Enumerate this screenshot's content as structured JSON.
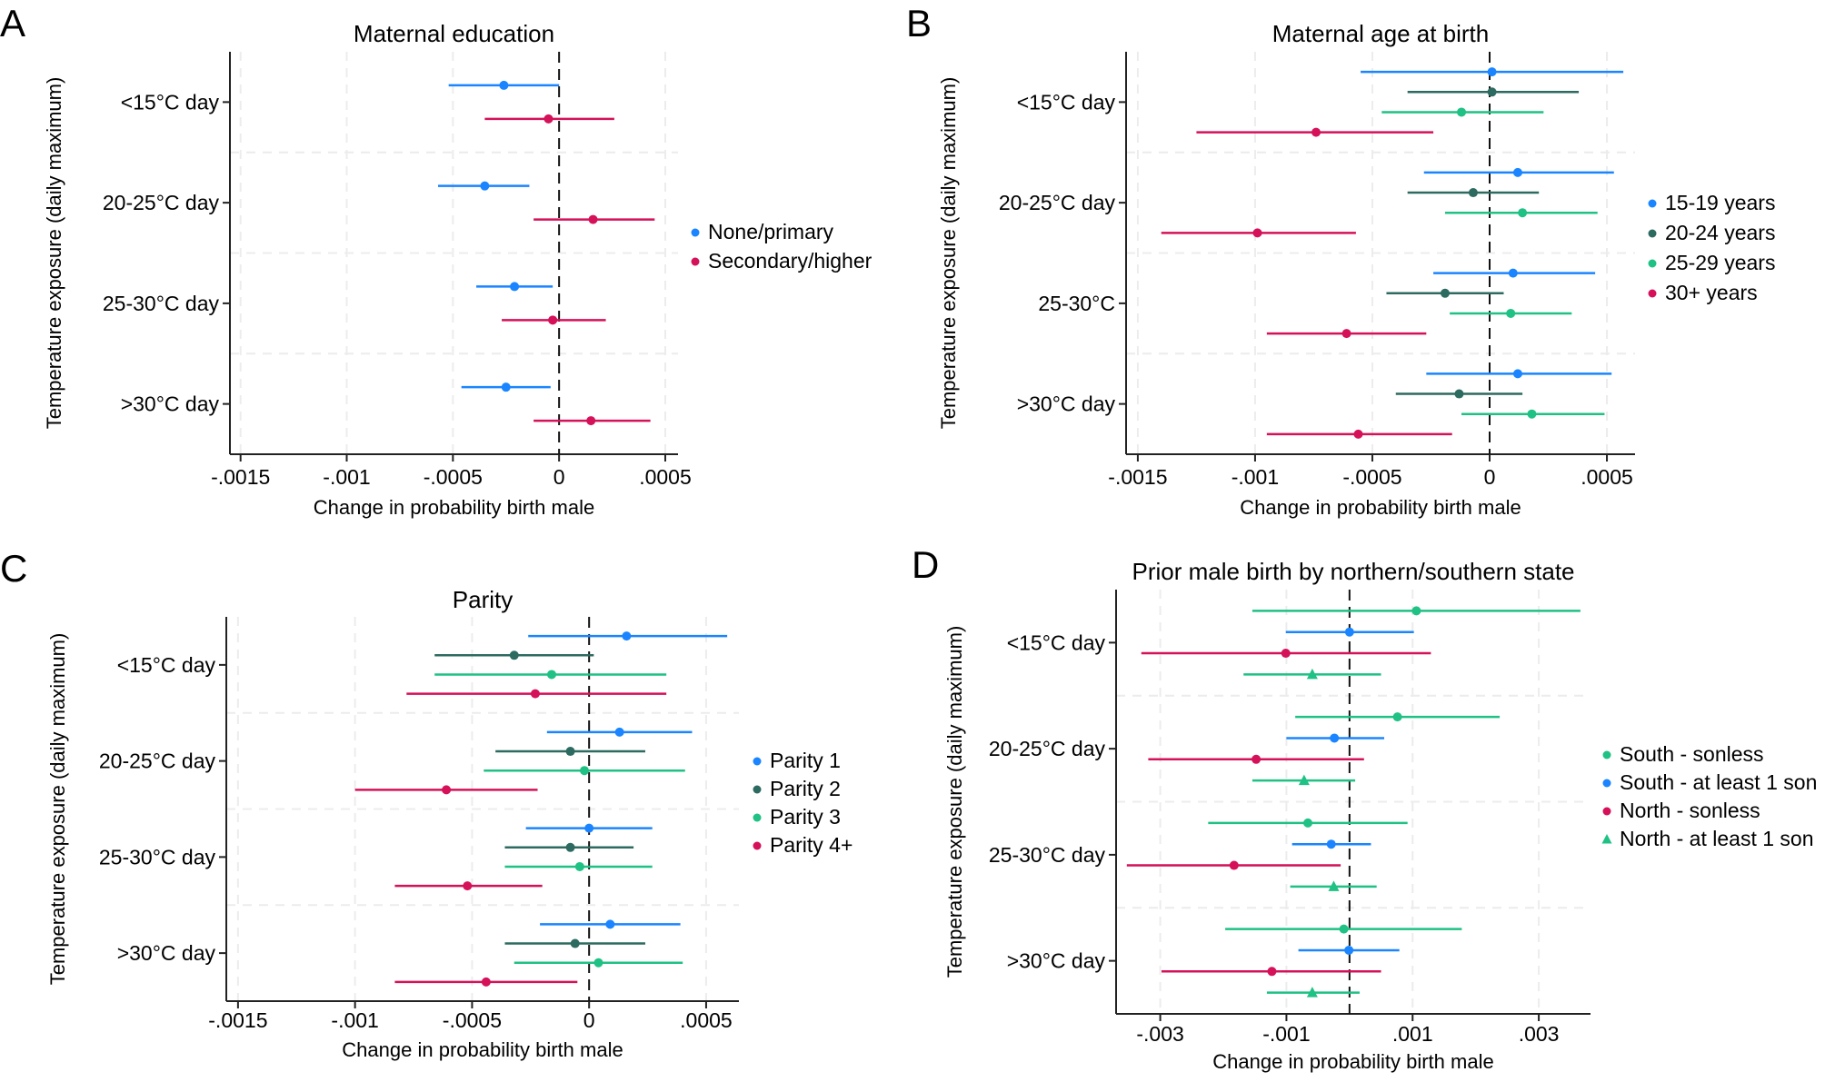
{
  "chart_data": [
    {
      "panel_label": "A",
      "type": "forest",
      "title": "Maternal education",
      "xlabel": "Change in probability birth male",
      "ylabel": "Temperature exposure (daily maximum)",
      "categories": [
        "<15°C day",
        "20-25°C day",
        "25-30°C day",
        ">30°C day"
      ],
      "x_ticks": [
        -0.0015,
        -0.001,
        -0.0005,
        0,
        0.0005
      ],
      "x_tick_labels": [
        "-.0015",
        "-.001",
        "-.0005",
        "0",
        ".0005"
      ],
      "xlim": [
        -0.00155,
        0.00056
      ],
      "reference_line": 0,
      "legend_position": "right",
      "series": [
        {
          "name": "None/primary",
          "color": "#1a85ff",
          "marker": "circle",
          "points": [
            {
              "est": -0.00026,
              "lo": -0.00052,
              "hi": 0.0
            },
            {
              "est": -0.00035,
              "lo": -0.00057,
              "hi": -0.00014
            },
            {
              "est": -0.00021,
              "lo": -0.00039,
              "hi": -3e-05
            },
            {
              "est": -0.00025,
              "lo": -0.00046,
              "hi": -4e-05
            }
          ]
        },
        {
          "name": "Secondary/higher",
          "color": "#d41159",
          "marker": "circle",
          "points": [
            {
              "est": -5e-05,
              "lo": -0.00035,
              "hi": 0.00026
            },
            {
              "est": 0.00016,
              "lo": -0.00012,
              "hi": 0.00045
            },
            {
              "est": -3e-05,
              "lo": -0.00027,
              "hi": 0.00022
            },
            {
              "est": 0.00015,
              "lo": -0.00012,
              "hi": 0.00043
            }
          ]
        }
      ]
    },
    {
      "panel_label": "B",
      "type": "forest",
      "title": "Maternal age at birth",
      "xlabel": "Change in probability birth male",
      "ylabel": "Temperature exposure (daily maximum)",
      "categories": [
        "<15°C day",
        "20-25°C day",
        "25-30°C",
        ">30°C day"
      ],
      "x_ticks": [
        -0.0015,
        -0.001,
        -0.0005,
        0,
        0.0005
      ],
      "x_tick_labels": [
        "-.0015",
        "-.001",
        "-.0005",
        "0",
        ".0005"
      ],
      "xlim": [
        -0.00155,
        0.00062
      ],
      "reference_line": 0,
      "legend_position": "right",
      "series": [
        {
          "name": "15-19 years",
          "color": "#1a85ff",
          "marker": "circle",
          "points": [
            {
              "est": 1e-05,
              "lo": -0.00055,
              "hi": 0.00057
            },
            {
              "est": 0.00012,
              "lo": -0.00028,
              "hi": 0.00053
            },
            {
              "est": 0.0001,
              "lo": -0.00024,
              "hi": 0.00045
            },
            {
              "est": 0.00012,
              "lo": -0.00027,
              "hi": 0.00052
            }
          ]
        },
        {
          "name": "20-24 years",
          "color": "#2d6a5f",
          "marker": "circle",
          "points": [
            {
              "est": 1e-05,
              "lo": -0.00035,
              "hi": 0.00038
            },
            {
              "est": -7e-05,
              "lo": -0.00035,
              "hi": 0.00021
            },
            {
              "est": -0.00019,
              "lo": -0.00044,
              "hi": 6e-05
            },
            {
              "est": -0.00013,
              "lo": -0.0004,
              "hi": 0.00014
            }
          ]
        },
        {
          "name": "25-29 years",
          "color": "#1fc184",
          "marker": "circle",
          "points": [
            {
              "est": -0.00012,
              "lo": -0.00046,
              "hi": 0.00023
            },
            {
              "est": 0.00014,
              "lo": -0.00019,
              "hi": 0.00046
            },
            {
              "est": 9e-05,
              "lo": -0.00017,
              "hi": 0.00035
            },
            {
              "est": 0.00018,
              "lo": -0.00012,
              "hi": 0.00049
            }
          ]
        },
        {
          "name": "30+ years",
          "color": "#d41159",
          "marker": "circle",
          "points": [
            {
              "est": -0.00074,
              "lo": -0.00125,
              "hi": -0.00024
            },
            {
              "est": -0.00099,
              "lo": -0.0014,
              "hi": -0.00057
            },
            {
              "est": -0.00061,
              "lo": -0.00095,
              "hi": -0.00027
            },
            {
              "est": -0.00056,
              "lo": -0.00095,
              "hi": -0.00016
            }
          ]
        }
      ]
    },
    {
      "panel_label": "C",
      "type": "forest",
      "title": "Parity",
      "xlabel": "Change in probability birth male",
      "ylabel": "Temperature exposure (daily maximum)",
      "categories": [
        "<15°C day",
        "20-25°C day",
        "25-30°C day",
        ">30°C day"
      ],
      "x_ticks": [
        -0.0015,
        -0.001,
        -0.0005,
        0,
        0.0005
      ],
      "x_tick_labels": [
        "-.0015",
        "-.001",
        "-.0005",
        "0",
        ".0005"
      ],
      "xlim": [
        -0.00155,
        0.00064
      ],
      "reference_line": 0,
      "legend_position": "right",
      "series": [
        {
          "name": "Parity 1",
          "color": "#1a85ff",
          "marker": "circle",
          "points": [
            {
              "est": 0.00016,
              "lo": -0.00026,
              "hi": 0.00059
            },
            {
              "est": 0.00013,
              "lo": -0.00018,
              "hi": 0.00044
            },
            {
              "est": 0.0,
              "lo": -0.00027,
              "hi": 0.00027
            },
            {
              "est": 9e-05,
              "lo": -0.00021,
              "hi": 0.00039
            }
          ]
        },
        {
          "name": "Parity 2",
          "color": "#2d6a5f",
          "marker": "circle",
          "points": [
            {
              "est": -0.00032,
              "lo": -0.00066,
              "hi": 2e-05
            },
            {
              "est": -8e-05,
              "lo": -0.0004,
              "hi": 0.00024
            },
            {
              "est": -8e-05,
              "lo": -0.00036,
              "hi": 0.00019
            },
            {
              "est": -6e-05,
              "lo": -0.00036,
              "hi": 0.00024
            }
          ]
        },
        {
          "name": "Parity 3",
          "color": "#1fc184",
          "marker": "circle",
          "points": [
            {
              "est": -0.00016,
              "lo": -0.00066,
              "hi": 0.00033
            },
            {
              "est": -2e-05,
              "lo": -0.00045,
              "hi": 0.00041
            },
            {
              "est": -4e-05,
              "lo": -0.00036,
              "hi": 0.00027
            },
            {
              "est": 4e-05,
              "lo": -0.00032,
              "hi": 0.0004
            }
          ]
        },
        {
          "name": "Parity 4+",
          "color": "#d41159",
          "marker": "circle",
          "points": [
            {
              "est": -0.00023,
              "lo": -0.00078,
              "hi": 0.00033
            },
            {
              "est": -0.00061,
              "lo": -0.001,
              "hi": -0.00022
            },
            {
              "est": -0.00052,
              "lo": -0.00083,
              "hi": -0.0002
            },
            {
              "est": -0.00044,
              "lo": -0.00083,
              "hi": -5e-05
            }
          ]
        }
      ]
    },
    {
      "panel_label": "D",
      "type": "forest",
      "title": "Prior male birth by northern/southern state",
      "xlabel": "Change in probability birth male",
      "ylabel": "Temperature exposure (daily maximum)",
      "categories": [
        "<15°C day",
        "20-25°C day",
        "25-30°C day",
        ">30°C day"
      ],
      "x_ticks": [
        -0.003,
        -0.001,
        0.001,
        0.003
      ],
      "x_tick_labels": [
        "-.003",
        "-.001",
        ".001",
        ".003"
      ],
      "xlim": [
        -0.0037,
        0.00382
      ],
      "reference_line": 0,
      "legend_position": "right",
      "series": [
        {
          "name": "South - sonless",
          "color": "#1fc184",
          "marker": "circle",
          "points": [
            {
              "est": 0.00106,
              "lo": -0.00154,
              "hi": 0.00366
            },
            {
              "est": 0.00076,
              "lo": -0.00086,
              "hi": 0.00238
            },
            {
              "est": -0.00066,
              "lo": -0.00224,
              "hi": 0.00092
            },
            {
              "est": -9e-05,
              "lo": -0.00197,
              "hi": 0.00178
            }
          ]
        },
        {
          "name": "South - at least 1 son",
          "color": "#1a85ff",
          "marker": "circle",
          "points": [
            {
              "est": 0.0,
              "lo": -0.00101,
              "hi": 0.00102
            },
            {
              "est": -0.00024,
              "lo": -0.001,
              "hi": 0.00055
            },
            {
              "est": -0.00029,
              "lo": -0.00091,
              "hi": 0.00034
            },
            {
              "est": -1e-05,
              "lo": -0.00081,
              "hi": 0.00079
            }
          ]
        },
        {
          "name": "North - sonless",
          "color": "#d41159",
          "marker": "circle",
          "points": [
            {
              "est": -0.00101,
              "lo": -0.0033,
              "hi": 0.00129
            },
            {
              "est": -0.00148,
              "lo": -0.00319,
              "hi": 0.00023
            },
            {
              "est": -0.00183,
              "lo": -0.00353,
              "hi": -0.00014
            },
            {
              "est": -0.00123,
              "lo": -0.00298,
              "hi": 0.0005
            }
          ]
        },
        {
          "name": "North - at least 1 son",
          "color": "#1fc184",
          "marker": "triangle",
          "points": [
            {
              "est": -0.00059,
              "lo": -0.00168,
              "hi": 0.0005
            },
            {
              "est": -0.00072,
              "lo": -0.00154,
              "hi": 9e-05
            },
            {
              "est": -0.00025,
              "lo": -0.00094,
              "hi": 0.00043
            },
            {
              "est": -0.00059,
              "lo": -0.00131,
              "hi": 0.00016
            }
          ]
        }
      ]
    }
  ]
}
